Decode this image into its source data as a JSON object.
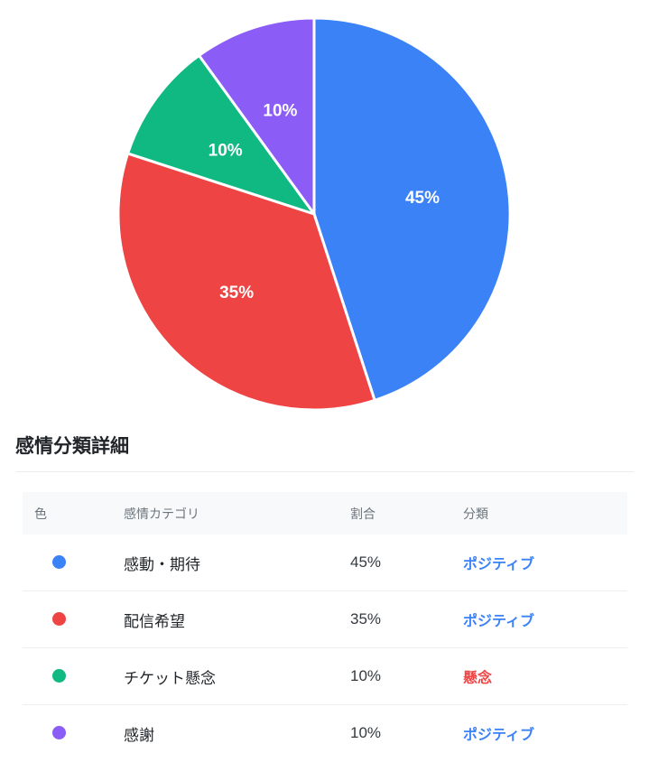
{
  "chart_data": {
    "type": "pie",
    "title": "",
    "labels": [
      "感動・期待",
      "配信希望",
      "チケット懸念",
      "感謝"
    ],
    "values": [
      45,
      35,
      10,
      10
    ],
    "slice_labels": [
      "45%",
      "35%",
      "10%",
      "10%"
    ],
    "colors": [
      "#3B82F6",
      "#EF4444",
      "#10B981",
      "#8B5CF6"
    ],
    "label_color": "#FFFFFF",
    "start_angle_deg": 0,
    "direction": "clockwise",
    "legend_position": "none"
  },
  "section": {
    "title": "感情分類詳細"
  },
  "table": {
    "headers": [
      "色",
      "感情カテゴリ",
      "割合",
      "分類"
    ],
    "rows": [
      {
        "color": "#3B82F6",
        "category": "感動・期待",
        "percent": "45%",
        "classification": "ポジティブ",
        "classification_color": "#3B82F6"
      },
      {
        "color": "#EF4444",
        "category": "配信希望",
        "percent": "35%",
        "classification": "ポジティブ",
        "classification_color": "#3B82F6"
      },
      {
        "color": "#10B981",
        "category": "チケット懸念",
        "percent": "10%",
        "classification": "懸念",
        "classification_color": "#EF4444"
      },
      {
        "color": "#8B5CF6",
        "category": "感謝",
        "percent": "10%",
        "classification": "ポジティブ",
        "classification_color": "#3B82F6"
      }
    ]
  },
  "palette": {
    "positive_text": "#3B82F6",
    "concern_text": "#EF4444",
    "header_bg": "#F8F9FA",
    "header_text": "#6C757D",
    "row_border": "#ECEEF0",
    "title_text": "#212529"
  }
}
